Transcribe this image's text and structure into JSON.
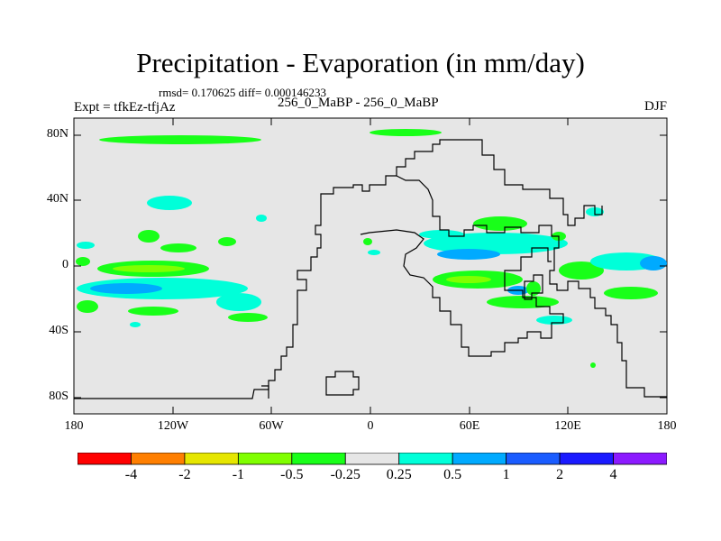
{
  "title": "Precipitation - Evaporation (in mm/day)",
  "stats": "rmsd= 0.170625 diff= 0.000146233",
  "expt": "Expt = tfkEz-tfjAz",
  "subtitle": "256_0_MaBP - 256_0_MaBP",
  "season": "DJF",
  "y_axis": {
    "ticks": [
      {
        "label": "80N",
        "lat": 80
      },
      {
        "label": "40N",
        "lat": 40
      },
      {
        "label": "0",
        "lat": 0
      },
      {
        "label": "40S",
        "lat": -40
      },
      {
        "label": "80S",
        "lat": -80
      }
    ]
  },
  "x_axis": {
    "ticks": [
      {
        "label": "180",
        "lon": -180
      },
      {
        "label": "120W",
        "lon": -120
      },
      {
        "label": "60W",
        "lon": -60
      },
      {
        "label": "0",
        "lon": 0
      },
      {
        "label": "60E",
        "lon": 60
      },
      {
        "label": "120E",
        "lon": 120
      },
      {
        "label": "180",
        "lon": 180
      }
    ]
  },
  "colorbar": {
    "colors": [
      "#ff0000",
      "#ff7f00",
      "#e6e600",
      "#80ff00",
      "#19ff19",
      "#e6e6e6",
      "#00ffd9",
      "#00aaff",
      "#1a5cff",
      "#1a1aff",
      "#8c1aff"
    ],
    "labels": [
      "-4",
      "-2",
      "-1",
      "-0.5",
      "-0.25",
      "0.25",
      "0.5",
      "1",
      "2",
      "4"
    ]
  },
  "colors": {
    "background_field": "#e6e6e6",
    "outline": "#000000"
  }
}
